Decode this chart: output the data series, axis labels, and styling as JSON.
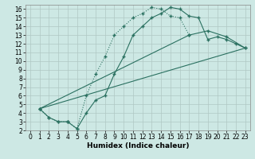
{
  "xlabel": "Humidex (Indice chaleur)",
  "background_color": "#cde8e4",
  "grid_color": "#b0c8c4",
  "line_color": "#2a7060",
  "xlim": [
    -0.5,
    23.5
  ],
  "ylim": [
    2,
    16.5
  ],
  "xticks": [
    0,
    1,
    2,
    3,
    4,
    5,
    6,
    7,
    8,
    9,
    10,
    11,
    12,
    13,
    14,
    15,
    16,
    17,
    18,
    19,
    20,
    21,
    22,
    23
  ],
  "yticks": [
    2,
    3,
    4,
    5,
    6,
    7,
    8,
    9,
    10,
    11,
    12,
    13,
    14,
    15,
    16
  ],
  "line1_x": [
    1,
    2,
    3,
    4,
    4,
    5,
    6,
    7,
    8,
    9,
    10,
    11,
    12,
    13,
    14,
    15,
    16,
    17
  ],
  "line1_y": [
    4.5,
    3.5,
    3.0,
    3.0,
    3.0,
    2.2,
    6.0,
    8.5,
    10.5,
    13.0,
    14.0,
    15.0,
    15.5,
    16.2,
    16.0,
    15.2,
    15.0,
    13.0
  ],
  "line2_x": [
    1,
    2,
    3,
    4,
    5,
    6,
    7,
    8,
    9,
    10,
    11,
    12,
    13,
    14,
    15,
    16,
    17,
    18,
    19,
    20,
    21,
    22,
    23
  ],
  "line2_y": [
    4.5,
    3.5,
    3.0,
    3.0,
    2.2,
    4.0,
    5.5,
    6.0,
    8.5,
    10.5,
    13.0,
    14.0,
    15.0,
    15.5,
    16.2,
    16.0,
    15.2,
    15.0,
    12.5,
    12.8,
    12.5,
    12.0,
    11.5
  ],
  "line3_x": [
    1,
    17,
    19,
    21,
    23
  ],
  "line3_y": [
    4.5,
    13.0,
    13.5,
    12.8,
    11.5
  ],
  "line4_x": [
    1,
    23
  ],
  "line4_y": [
    4.5,
    11.5
  ],
  "font_size_tick": 5.5,
  "font_size_label": 6.5
}
